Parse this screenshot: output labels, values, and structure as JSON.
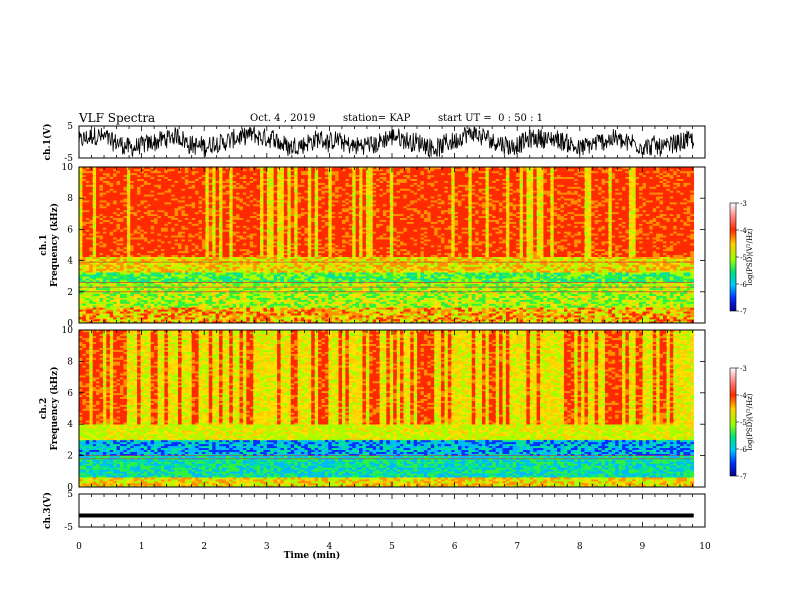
{
  "header": {
    "title": "VLF Spectra",
    "date": "Oct. 4 , 2019",
    "station": "station= KAP",
    "start_ut": "start UT =  0 : 50 : 1"
  },
  "chart_data": [
    {
      "type": "line",
      "panel": "ch1-waveform",
      "ylabel": "ch.1(V)",
      "yticks": [
        "5",
        "-5"
      ],
      "ylim": [
        -5,
        5
      ],
      "xlim": [
        0,
        10
      ],
      "description_series": "noisy waveform spanning 0 to ~9.8 min, amplitude roughly -4 to +4 V"
    },
    {
      "type": "heatmap",
      "panel": "ch1-spectrogram",
      "ylabel": "ch.1",
      "ylabel2": "Frequency (kHz)",
      "yticks": [
        "0",
        "2",
        "4",
        "6",
        "8",
        "10"
      ],
      "ylim": [
        0,
        10
      ],
      "xlim": [
        0,
        10
      ],
      "colorbar": {
        "label": "log(PSD)(V²/Hz)",
        "ticks": [
          "-3",
          "-4",
          "-5",
          "-6",
          "-7"
        ],
        "range": [
          -7,
          -3
        ]
      }
    },
    {
      "type": "heatmap",
      "panel": "ch2-spectrogram",
      "ylabel": "ch.2",
      "ylabel2": "Frequency (kHz)",
      "yticks": [
        "0",
        "2",
        "4",
        "6",
        "8",
        "10"
      ],
      "ylim": [
        0,
        10
      ],
      "xlim": [
        0,
        10
      ],
      "colorbar": {
        "label": "log(PSD)(V²/Hz)",
        "ticks": [
          "-3",
          "-4",
          "-5",
          "-6",
          "-7"
        ],
        "range": [
          -7,
          -3
        ]
      }
    },
    {
      "type": "line",
      "panel": "ch3-waveform",
      "ylabel": "ch.3(V)",
      "yticks": [
        "5",
        "-5"
      ],
      "ylim": [
        -5,
        5
      ],
      "xlim": [
        0,
        10
      ],
      "flat_value": -1.5
    }
  ],
  "xaxis": {
    "label": "Time (min)",
    "ticks": [
      "0",
      "1",
      "2",
      "3",
      "4",
      "5",
      "6",
      "7",
      "8",
      "9",
      "10"
    ]
  }
}
